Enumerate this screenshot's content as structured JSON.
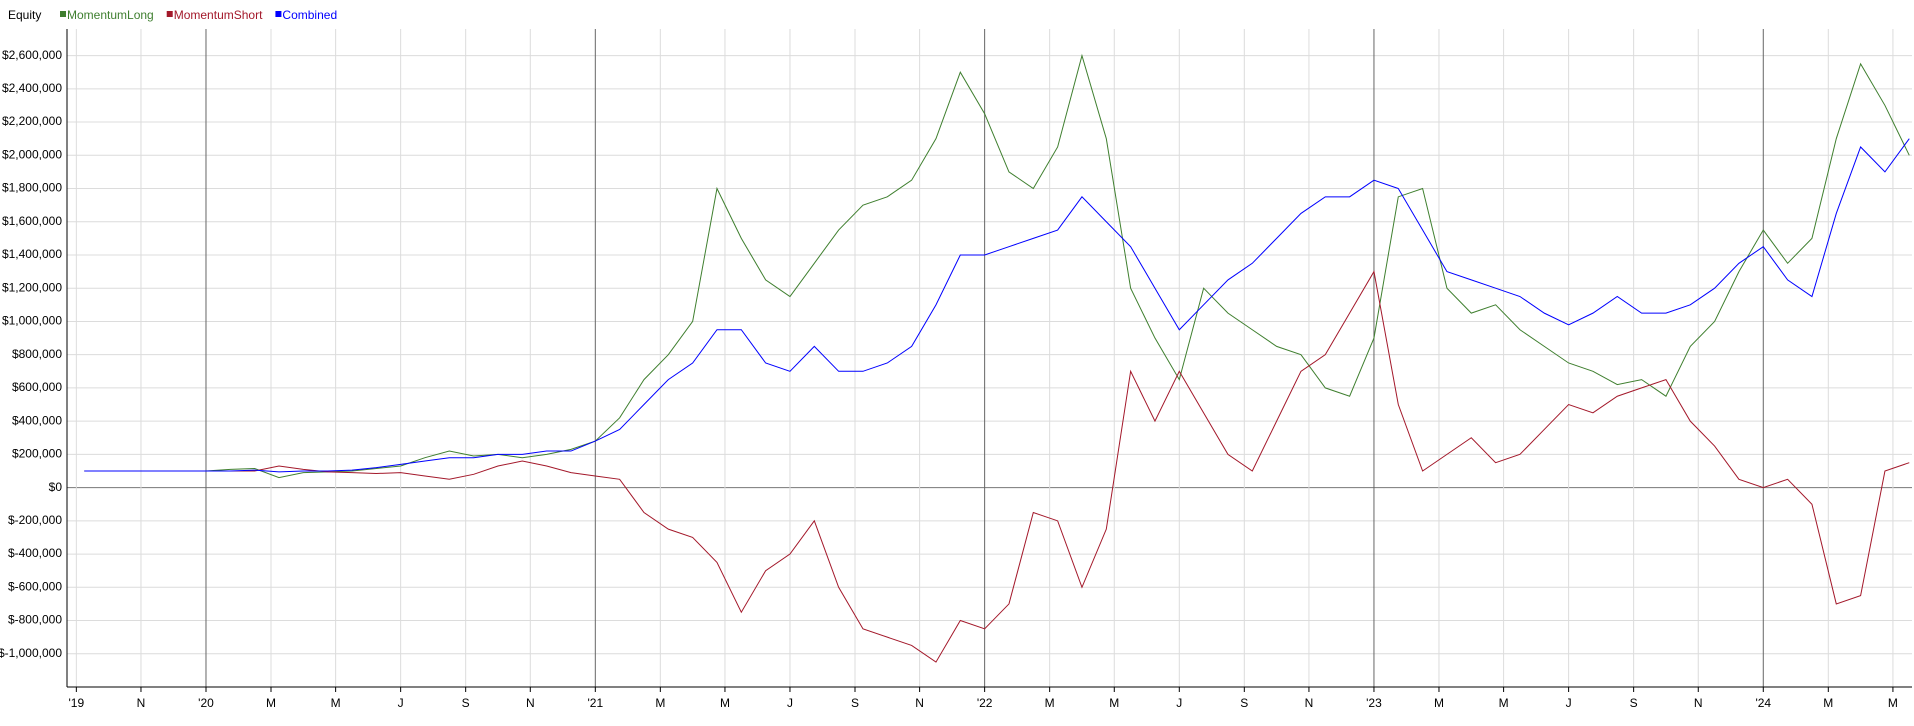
{
  "chart_data": {
    "type": "line",
    "title": "Equity",
    "x": [
      2019.6875,
      2019.75,
      2019.8125,
      2019.875,
      2019.9375,
      2020,
      2020.0625,
      2020.125,
      2020.1875,
      2020.25,
      2020.3125,
      2020.375,
      2020.4375,
      2020.5,
      2020.5625,
      2020.625,
      2020.6875,
      2020.75,
      2020.8125,
      2020.875,
      2020.9375,
      2021,
      2021.0625,
      2021.125,
      2021.1875,
      2021.25,
      2021.3125,
      2021.375,
      2021.4375,
      2021.5,
      2021.5625,
      2021.625,
      2021.6875,
      2021.75,
      2021.8125,
      2021.875,
      2021.9375,
      2022,
      2022.0625,
      2022.125,
      2022.1875,
      2022.25,
      2022.3125,
      2022.375,
      2022.4375,
      2022.5,
      2022.5625,
      2022.625,
      2022.6875,
      2022.75,
      2022.8125,
      2022.875,
      2022.9375,
      2023,
      2023.0625,
      2023.125,
      2023.1875,
      2023.25,
      2023.3125,
      2023.375,
      2023.4375,
      2023.5,
      2023.5625,
      2023.625,
      2023.6875,
      2023.75,
      2023.8125,
      2023.875,
      2023.9375,
      2024,
      2024.0625,
      2024.125,
      2024.1875,
      2024.25,
      2024.3125,
      2024.375
    ],
    "series": [
      {
        "name": "MomentumLong",
        "color": "#3f7f2f",
        "values": [
          100000,
          100000,
          100000,
          100000,
          100000,
          100000,
          110000,
          115000,
          60000,
          90000,
          95000,
          100000,
          115000,
          130000,
          180000,
          220000,
          190000,
          200000,
          180000,
          200000,
          230000,
          280000,
          420000,
          650000,
          800000,
          1000000,
          1800000,
          1500000,
          1250000,
          1150000,
          1350000,
          1550000,
          1700000,
          1750000,
          1850000,
          2100000,
          2500000,
          2250000,
          1900000,
          1800000,
          2050000,
          2600000,
          2100000,
          1200000,
          900000,
          650000,
          1200000,
          1050000,
          950000,
          850000,
          800000,
          600000,
          550000,
          900000,
          1750000,
          1800000,
          1200000,
          1050000,
          1100000,
          950000,
          850000,
          750000,
          700000,
          620000,
          650000,
          550000,
          850000,
          1000000,
          1300000,
          1550000,
          1350000,
          1500000,
          2100000,
          2550000,
          2300000,
          2000000
        ]
      },
      {
        "name": "MomentumShort",
        "color": "#a3182a",
        "values": [
          100000,
          100000,
          100000,
          100000,
          100000,
          100000,
          100000,
          100000,
          130000,
          110000,
          95000,
          90000,
          85000,
          90000,
          70000,
          50000,
          80000,
          130000,
          160000,
          130000,
          90000,
          70000,
          50000,
          -150000,
          -250000,
          -300000,
          -450000,
          -750000,
          -500000,
          -400000,
          -200000,
          -600000,
          -850000,
          -900000,
          -950000,
          -1050000,
          -800000,
          -850000,
          -700000,
          -150000,
          -200000,
          -600000,
          -250000,
          700000,
          400000,
          700000,
          450000,
          200000,
          100000,
          400000,
          700000,
          800000,
          1050000,
          1300000,
          500000,
          100000,
          200000,
          300000,
          150000,
          200000,
          350000,
          500000,
          450000,
          550000,
          600000,
          650000,
          400000,
          250000,
          50000,
          0,
          50000,
          -100000,
          -700000,
          -650000,
          100000,
          150000
        ]
      },
      {
        "name": "Combined",
        "color": "#0000ff",
        "values": [
          100000,
          100000,
          100000,
          100000,
          100000,
          100000,
          100000,
          105000,
          95000,
          100000,
          100000,
          105000,
          120000,
          140000,
          160000,
          180000,
          180000,
          200000,
          200000,
          220000,
          220000,
          280000,
          350000,
          500000,
          650000,
          750000,
          950000,
          950000,
          750000,
          700000,
          850000,
          700000,
          700000,
          750000,
          850000,
          1100000,
          1400000,
          1400000,
          1450000,
          1500000,
          1550000,
          1750000,
          1600000,
          1450000,
          1200000,
          950000,
          1100000,
          1250000,
          1350000,
          1500000,
          1650000,
          1750000,
          1750000,
          1850000,
          1800000,
          1550000,
          1300000,
          1250000,
          1200000,
          1150000,
          1050000,
          980000,
          1050000,
          1150000,
          1050000,
          1050000,
          1100000,
          1200000,
          1350000,
          1450000,
          1250000,
          1150000,
          1650000,
          2050000,
          1900000,
          2100000
        ]
      }
    ],
    "xlim": [
      2019.643,
      2024.382
    ],
    "xticks": [
      {
        "value": 2019.667,
        "label": "'19"
      },
      {
        "value": 2019.833,
        "label": "N"
      },
      {
        "value": 2020,
        "label": "'20"
      },
      {
        "value": 2020.167,
        "label": "M"
      },
      {
        "value": 2020.333,
        "label": "M"
      },
      {
        "value": 2020.5,
        "label": "J"
      },
      {
        "value": 2020.667,
        "label": "S"
      },
      {
        "value": 2020.833,
        "label": "N"
      },
      {
        "value": 2021,
        "label": "'21"
      },
      {
        "value": 2021.167,
        "label": "M"
      },
      {
        "value": 2021.333,
        "label": "M"
      },
      {
        "value": 2021.5,
        "label": "J"
      },
      {
        "value": 2021.667,
        "label": "S"
      },
      {
        "value": 2021.833,
        "label": "N"
      },
      {
        "value": 2022,
        "label": "'22"
      },
      {
        "value": 2022.167,
        "label": "M"
      },
      {
        "value": 2022.333,
        "label": "M"
      },
      {
        "value": 2022.5,
        "label": "J"
      },
      {
        "value": 2022.667,
        "label": "S"
      },
      {
        "value": 2022.833,
        "label": "N"
      },
      {
        "value": 2023,
        "label": "'23"
      },
      {
        "value": 2023.167,
        "label": "M"
      },
      {
        "value": 2023.333,
        "label": "M"
      },
      {
        "value": 2023.5,
        "label": "J"
      },
      {
        "value": 2023.667,
        "label": "S"
      },
      {
        "value": 2023.833,
        "label": "N"
      },
      {
        "value": 2024,
        "label": "'24"
      },
      {
        "value": 2024.167,
        "label": "M"
      },
      {
        "value": 2024.333,
        "label": "M"
      }
    ],
    "ylim": [
      -1200000,
      2760000
    ],
    "yticks": [
      {
        "value": 2600000,
        "label": "$2,600,000"
      },
      {
        "value": 2400000,
        "label": "$2,400,000"
      },
      {
        "value": 2200000,
        "label": "$2,200,000"
      },
      {
        "value": 2000000,
        "label": "$2,000,000"
      },
      {
        "value": 1800000,
        "label": "$1,800,000"
      },
      {
        "value": 1600000,
        "label": "$1,600,000"
      },
      {
        "value": 1400000,
        "label": "$1,400,000"
      },
      {
        "value": 1200000,
        "label": "$1,200,000"
      },
      {
        "value": 1000000,
        "label": "$1,000,000"
      },
      {
        "value": 800000,
        "label": "$800,000"
      },
      {
        "value": 600000,
        "label": "$600,000"
      },
      {
        "value": 400000,
        "label": "$400,000"
      },
      {
        "value": 200000,
        "label": "$200,000"
      },
      {
        "value": 0,
        "label": "$0"
      },
      {
        "value": -200000,
        "label": "$-200,000"
      },
      {
        "value": -400000,
        "label": "$-400,000"
      },
      {
        "value": -600000,
        "label": "$-600,000"
      },
      {
        "value": -800000,
        "label": "$-800,000"
      },
      {
        "value": -1000000,
        "label": "$-1,000,000"
      }
    ],
    "grid": true,
    "legend": "top-left"
  }
}
